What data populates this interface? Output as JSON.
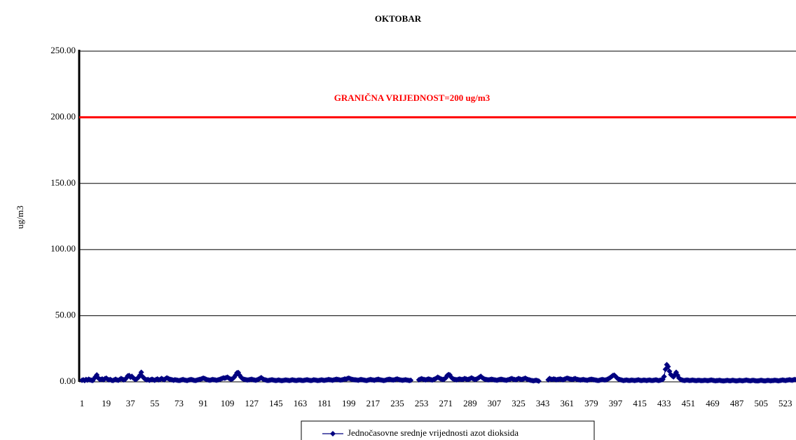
{
  "chart_data": {
    "type": "line",
    "title": "OKTOBAR",
    "y_label": "ug/m3",
    "ylim": [
      0,
      250
    ],
    "yticks": [
      {
        "value": 0,
        "label": "0.00"
      },
      {
        "value": 50,
        "label": "50.00"
      },
      {
        "value": 100,
        "label": "100.00"
      },
      {
        "value": 150,
        "label": "150.00"
      },
      {
        "value": 200,
        "label": "200.00"
      },
      {
        "value": 250,
        "label": "250.00"
      }
    ],
    "grid": true,
    "legend": "bottom",
    "limit": {
      "value": 200,
      "label": "GRANIČNA VRIJEDNOST=200 ug/m3",
      "color": "#ff0000"
    },
    "categories": [
      1,
      null,
      null,
      null,
      null,
      null,
      null,
      null,
      null,
      null,
      null,
      null,
      null,
      null,
      null,
      null,
      null,
      null,
      19,
      null,
      null,
      null,
      null,
      null,
      null,
      null,
      null,
      null,
      null,
      null,
      null,
      null,
      null,
      null,
      null,
      null,
      37,
      null,
      null,
      null,
      null,
      null,
      null,
      null,
      null,
      null,
      null,
      null,
      null,
      null,
      null,
      null,
      null,
      null,
      55,
      null,
      null,
      null,
      null,
      null,
      null,
      null,
      null,
      null,
      null,
      null,
      null,
      null,
      null,
      null,
      null,
      null,
      73,
      null,
      null,
      null,
      null,
      null,
      null,
      null,
      null,
      null,
      null,
      null,
      null,
      null,
      null,
      null,
      null,
      null,
      91,
      null,
      null,
      null,
      null,
      null,
      null,
      null,
      null,
      null,
      null,
      null,
      null,
      null,
      null,
      null,
      null,
      null,
      109,
      null,
      null,
      null,
      null,
      null,
      null,
      null,
      null,
      null,
      null,
      null,
      null,
      null,
      null,
      null,
      null,
      null,
      127,
      null,
      null,
      null,
      null,
      null,
      null,
      null,
      null,
      null,
      null,
      null,
      null,
      null,
      null,
      null,
      null,
      null,
      145,
      null,
      null,
      null,
      null,
      null,
      null,
      null,
      null,
      null,
      null,
      null,
      null,
      null,
      null,
      null,
      null,
      null,
      163,
      null,
      null,
      null,
      null,
      null,
      null,
      null,
      null,
      null,
      null,
      null,
      null,
      null,
      null,
      null,
      null,
      null,
      181,
      null,
      null,
      null,
      null,
      null,
      null,
      null,
      null,
      null,
      null,
      null,
      null,
      null,
      null,
      null,
      null,
      null,
      199,
      null,
      null,
      null,
      null,
      null,
      null,
      null,
      null,
      null,
      null,
      null,
      null,
      null,
      null,
      null,
      null,
      null,
      217,
      null,
      null,
      null,
      null,
      null,
      null,
      null,
      null,
      null,
      null,
      null,
      null,
      null,
      null,
      null,
      null,
      null,
      235,
      null,
      null,
      null,
      null,
      null,
      null,
      null,
      null,
      null,
      null,
      null,
      null,
      null,
      null,
      null,
      null,
      null,
      253,
      null,
      null,
      null,
      null,
      null,
      null,
      null,
      null,
      null,
      null,
      null,
      null,
      null,
      null,
      null,
      null,
      null,
      271,
      null,
      null,
      null,
      null,
      null,
      null,
      null,
      null,
      null,
      null,
      null,
      null,
      null,
      null,
      null,
      null,
      null,
      289,
      null,
      null,
      null,
      null,
      null,
      null,
      null,
      null,
      null,
      null,
      null,
      null,
      null,
      null,
      null,
      null,
      null,
      307,
      null,
      null,
      null,
      null,
      null,
      null,
      null,
      null,
      null,
      null,
      null,
      null,
      null,
      null,
      null,
      null,
      null,
      325,
      null,
      null,
      null,
      null,
      null,
      null,
      null,
      null,
      null,
      null,
      null,
      null,
      null,
      null,
      null,
      null,
      null,
      343,
      null,
      null,
      null,
      null,
      null,
      null,
      null,
      null,
      null,
      null,
      null,
      null,
      null,
      null,
      null,
      null,
      null,
      361,
      null,
      null,
      null,
      null,
      null,
      null,
      null,
      null,
      null,
      null,
      null,
      null,
      null,
      null,
      null,
      null,
      null,
      379,
      null,
      null,
      null,
      null,
      null,
      null,
      null,
      null,
      null,
      null,
      null,
      null,
      null,
      null,
      null,
      null,
      null,
      397,
      null,
      null,
      null,
      null,
      null,
      null,
      null,
      null,
      null,
      null,
      null,
      null,
      null,
      null,
      null,
      null,
      null,
      415,
      null,
      null,
      null,
      null,
      null,
      null,
      null,
      null,
      null,
      null,
      null,
      null,
      null,
      null,
      null,
      null,
      null,
      433,
      null,
      null,
      null,
      null,
      null,
      null,
      null,
      null,
      null,
      null,
      null,
      null,
      null,
      null,
      null,
      null,
      null,
      451,
      null,
      null,
      null,
      null,
      null,
      null,
      null,
      null,
      null,
      null,
      null,
      null,
      null,
      null,
      null,
      null,
      null,
      469,
      null,
      null,
      null,
      null,
      null,
      null,
      null,
      null,
      null,
      null,
      null,
      null,
      null,
      null,
      null,
      null,
      null,
      487,
      null,
      null,
      null,
      null,
      null,
      null,
      null,
      null,
      null,
      null,
      null,
      null,
      null,
      null,
      null,
      null,
      null,
      505,
      null,
      null,
      null,
      null,
      null,
      null,
      null,
      null,
      null,
      null,
      null,
      null,
      null,
      null,
      null,
      null,
      null,
      523,
      null,
      null,
      null,
      null,
      null,
      null,
      null,
      null
    ],
    "series": [
      {
        "name": "Jednočasovne srednje vrijednosti azot dioksida",
        "color": "#000080",
        "values": [
          1.2,
          1.5,
          1.0,
          1.8,
          1.3,
          2.0,
          1.5,
          1.2,
          1.0,
          2.5,
          3.8,
          5.2,
          3.0,
          2.0,
          1.8,
          2.2,
          1.6,
          2.4,
          2.8,
          2.0,
          1.5,
          1.8,
          1.2,
          1.0,
          1.5,
          2.0,
          1.4,
          1.2,
          1.8,
          2.5,
          2.0,
          1.5,
          1.8,
          3.0,
          4.5,
          4.8,
          3.5,
          4.2,
          3.0,
          2.2,
          1.8,
          2.5,
          3.5,
          5.0,
          7.2,
          4.0,
          2.8,
          2.0,
          1.5,
          1.8,
          1.2,
          1.6,
          2.0,
          1.5,
          1.2,
          1.8,
          2.2,
          1.5,
          1.8,
          2.5,
          2.0,
          1.6,
          2.4,
          3.0,
          2.5,
          2.0,
          1.8,
          1.5,
          1.2,
          1.6,
          1.4,
          1.2,
          1.0,
          1.2,
          1.5,
          1.8,
          1.4,
          1.2,
          1.0,
          1.3,
          1.6,
          1.8,
          1.5,
          1.2,
          1.0,
          1.2,
          1.5,
          1.8,
          2.0,
          2.4,
          2.8,
          2.5,
          2.0,
          1.6,
          1.4,
          1.2,
          1.5,
          1.8,
          1.6,
          1.4,
          1.2,
          1.5,
          1.8,
          2.2,
          2.6,
          3.0,
          2.8,
          3.2,
          3.5,
          2.8,
          2.2,
          2.0,
          2.5,
          3.5,
          5.0,
          6.8,
          7.0,
          5.0,
          3.5,
          2.5,
          2.0,
          1.8,
          1.5,
          1.4,
          1.6,
          1.8,
          2.0,
          1.6,
          1.4,
          1.2,
          1.5,
          2.0,
          2.5,
          3.2,
          2.4,
          1.8,
          1.5,
          1.2,
          1.0,
          1.2,
          1.4,
          1.6,
          1.3,
          1.1,
          1.0,
          1.2,
          1.4,
          1.1,
          0.9,
          1.0,
          1.2,
          1.4,
          1.3,
          1.1,
          1.0,
          1.2,
          1.5,
          1.3,
          1.1,
          1.0,
          1.2,
          1.4,
          1.3,
          1.1,
          1.0,
          1.2,
          1.4,
          1.6,
          1.3,
          1.1,
          1.0,
          1.2,
          1.5,
          1.4,
          1.2,
          1.0,
          1.1,
          1.3,
          1.5,
          1.2,
          1.1,
          1.3,
          1.5,
          1.8,
          1.6,
          1.4,
          1.2,
          1.5,
          1.8,
          2.0,
          1.8,
          1.5,
          1.3,
          1.5,
          1.8,
          2.2,
          2.0,
          2.5,
          2.8,
          2.4,
          2.0,
          1.8,
          1.6,
          1.5,
          1.4,
          1.2,
          1.5,
          1.8,
          1.6,
          1.4,
          1.2,
          1.0,
          1.2,
          1.5,
          1.8,
          1.6,
          1.4,
          1.2,
          1.5,
          1.8,
          2.0,
          1.6,
          1.4,
          1.2,
          1.0,
          1.2,
          1.5,
          1.8,
          2.0,
          1.8,
          1.5,
          1.4,
          1.6,
          2.0,
          2.2,
          1.8,
          1.5,
          1.3,
          1.2,
          1.4,
          1.6,
          1.4,
          1.2,
          1.0,
          1.2,
          null,
          null,
          null,
          null,
          null,
          1.5,
          2.0,
          2.4,
          2.0,
          1.8,
          1.5,
          1.8,
          2.2,
          2.0,
          1.6,
          1.4,
          1.8,
          2.2,
          2.8,
          3.5,
          3.0,
          2.4,
          2.0,
          1.8,
          2.2,
          3.0,
          4.8,
          5.5,
          5.2,
          3.5,
          2.5,
          2.0,
          1.8,
          1.6,
          1.8,
          2.2,
          2.0,
          1.8,
          2.0,
          2.5,
          2.2,
          1.8,
          2.0,
          2.4,
          3.0,
          2.5,
          2.0,
          1.8,
          2.2,
          2.8,
          3.5,
          4.2,
          3.2,
          2.5,
          2.0,
          1.8,
          1.6,
          1.5,
          1.8,
          2.0,
          1.8,
          1.5,
          1.4,
          1.2,
          1.5,
          1.8,
          2.0,
          1.8,
          1.5,
          1.3,
          1.2,
          1.5,
          1.8,
          2.2,
          2.5,
          2.0,
          1.8,
          1.6,
          2.0,
          2.5,
          2.2,
          1.8,
          2.0,
          2.4,
          2.8,
          2.2,
          1.8,
          1.5,
          1.2,
          1.0,
          0.8,
          1.0,
          1.2,
          0.9,
          0.6,
          null,
          null,
          null,
          null,
          null,
          null,
          1.5,
          2.5,
          2.0,
          1.8,
          2.2,
          2.0,
          1.6,
          1.8,
          2.0,
          2.2,
          1.8,
          1.6,
          2.0,
          2.4,
          2.8,
          2.5,
          2.2,
          2.0,
          1.8,
          2.2,
          2.5,
          2.0,
          1.8,
          1.5,
          1.4,
          1.6,
          1.8,
          1.5,
          1.3,
          1.2,
          1.5,
          1.8,
          2.0,
          1.8,
          1.6,
          1.4,
          1.2,
          1.0,
          1.2,
          1.5,
          1.8,
          1.6,
          1.4,
          1.5,
          2.0,
          2.5,
          3.2,
          4.0,
          4.8,
          5.0,
          4.2,
          3.0,
          2.2,
          1.8,
          1.5,
          1.2,
          1.0,
          1.2,
          1.4,
          1.2,
          1.0,
          1.1,
          1.3,
          1.2,
          1.0,
          1.1,
          1.3,
          1.5,
          1.2,
          1.0,
          1.1,
          1.3,
          1.2,
          1.0,
          1.2,
          1.4,
          1.2,
          1.0,
          1.1,
          1.3,
          1.5,
          1.2,
          1.0,
          1.2,
          1.5,
          1.8,
          4.0,
          9.5,
          13.0,
          11.5,
          8.0,
          5.5,
          4.5,
          3.8,
          5.5,
          7.2,
          5.0,
          3.0,
          2.0,
          1.5,
          1.2,
          1.0,
          1.2,
          1.4,
          1.2,
          1.0,
          1.1,
          1.3,
          1.2,
          1.0,
          0.9,
          1.1,
          1.2,
          1.0,
          0.9,
          1.0,
          1.2,
          1.1,
          0.9,
          1.0,
          1.2,
          1.4,
          1.2,
          1.0,
          0.8,
          0.9,
          1.0,
          1.2,
          1.0,
          0.8,
          0.7,
          0.8,
          1.0,
          1.1,
          0.9,
          0.8,
          1.0,
          1.2,
          1.0,
          0.8,
          0.7,
          0.9,
          1.1,
          1.0,
          0.8,
          0.9,
          1.1,
          1.3,
          1.1,
          0.9,
          0.8,
          1.0,
          1.2,
          1.0,
          0.8,
          0.7,
          0.8,
          1.0,
          1.2,
          1.0,
          0.8,
          0.7,
          0.9,
          1.1,
          1.0,
          0.8,
          0.9,
          1.0,
          1.2,
          1.1,
          0.9,
          0.8,
          1.0,
          1.2,
          1.4,
          1.2,
          1.0,
          1.2,
          1.4,
          1.6,
          1.4,
          1.2,
          1.5,
          1.8,
          1.6
        ]
      }
    ]
  }
}
